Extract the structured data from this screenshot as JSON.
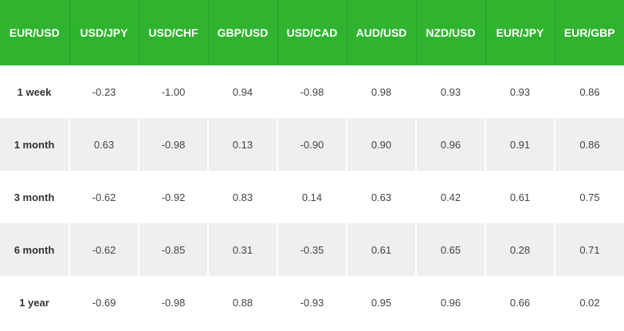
{
  "table": {
    "header": [
      "EUR/USD",
      "USD/JPY",
      "USD/CHF",
      "GBP/USD",
      "USD/CAD",
      "AUD/USD",
      "NZD/USD",
      "EUR/JPY",
      "EUR/GBP"
    ],
    "rows": [
      [
        "1 week",
        "-0.23",
        "-1.00",
        "0.94",
        "-0.98",
        "0.98",
        "0.93",
        "0.93",
        "0.86"
      ],
      [
        "1 month",
        "0.63",
        "-0.98",
        "0.13",
        "-0.90",
        "0.90",
        "0.96",
        "0.91",
        "0.86"
      ],
      [
        "3 month",
        "-0.62",
        "-0.92",
        "0.83",
        "0.14",
        "0.63",
        "0.42",
        "0.61",
        "0.75"
      ],
      [
        "6 month",
        "-0.62",
        "-0.85",
        "0.31",
        "-0.35",
        "0.61",
        "0.65",
        "0.28",
        "0.71"
      ],
      [
        "1 year",
        "-0.69",
        "-0.98",
        "0.88",
        "-0.93",
        "0.95",
        "0.96",
        "0.66",
        "0.02"
      ]
    ]
  }
}
